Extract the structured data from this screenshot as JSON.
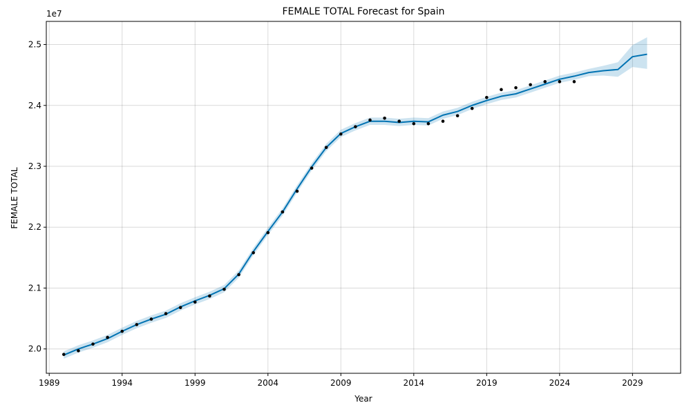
{
  "chart_data": {
    "type": "line",
    "title": "FEMALE TOTAL Forecast for Spain",
    "xlabel": "Year",
    "ylabel": "FEMALE TOTAL",
    "y_offset_label": "1e7",
    "xlim": [
      1988.8,
      2032.3
    ],
    "ylim": [
      19.6,
      25.38
    ],
    "x_ticks": [
      1989,
      1994,
      1999,
      2004,
      2009,
      2014,
      2019,
      2024,
      2029
    ],
    "y_ticks": [
      20.0,
      21.0,
      22.0,
      23.0,
      24.0,
      25.0
    ],
    "y_tick_labels": [
      "2.0",
      "2.1",
      "2.2",
      "2.3",
      "2.4",
      "2.5"
    ],
    "grid": true,
    "colors": {
      "forecast": "#0072B2",
      "interval": "#9ECAE1",
      "observed": "#000000"
    },
    "series": [
      {
        "kind": "observed",
        "x": [
          1990,
          1991,
          1992,
          1993,
          1994,
          1995,
          1996,
          1997,
          1998,
          1999,
          2000,
          2001,
          2002,
          2003,
          2004,
          2005,
          2006,
          2007,
          2008,
          2009,
          2010,
          2011,
          2012,
          2013,
          2014,
          2015,
          2016,
          2017,
          2018,
          2019,
          2020,
          2021,
          2022,
          2023,
          2024,
          2025
        ],
        "values": [
          19.91,
          19.97,
          20.08,
          20.19,
          20.29,
          20.4,
          20.49,
          20.58,
          20.68,
          20.77,
          20.87,
          20.98,
          21.22,
          21.58,
          21.91,
          22.25,
          22.59,
          22.97,
          23.31,
          23.53,
          23.65,
          23.76,
          23.79,
          23.74,
          23.7,
          23.7,
          23.74,
          23.83,
          23.95,
          24.13,
          24.26,
          24.29,
          24.34,
          24.39,
          24.39,
          24.39
        ]
      },
      {
        "kind": "forecast",
        "x": [
          1990,
          1991,
          1992,
          1993,
          1994,
          1995,
          1996,
          1997,
          1998,
          1999,
          2000,
          2001,
          2002,
          2003,
          2004,
          2005,
          2006,
          2007,
          2008,
          2009,
          2010,
          2011,
          2012,
          2013,
          2014,
          2015,
          2016,
          2017,
          2018,
          2019,
          2020,
          2021,
          2022,
          2023,
          2024,
          2025,
          2026,
          2027,
          2028,
          2029,
          2030
        ],
        "values": [
          19.9,
          20.0,
          20.08,
          20.17,
          20.29,
          20.4,
          20.49,
          20.57,
          20.69,
          20.79,
          20.88,
          20.99,
          21.23,
          21.6,
          21.93,
          22.25,
          22.63,
          22.99,
          23.31,
          23.54,
          23.65,
          23.74,
          23.74,
          23.72,
          23.74,
          23.73,
          23.84,
          23.9,
          24.0,
          24.08,
          24.15,
          24.19,
          24.27,
          24.35,
          24.43,
          24.48,
          24.54,
          24.57,
          24.59,
          24.8,
          24.84
        ],
        "lower": [
          19.84,
          19.94,
          20.02,
          20.11,
          20.23,
          20.34,
          20.43,
          20.51,
          20.63,
          20.73,
          20.82,
          20.93,
          21.17,
          21.54,
          21.87,
          22.19,
          22.57,
          22.93,
          23.25,
          23.48,
          23.59,
          23.68,
          23.68,
          23.66,
          23.68,
          23.67,
          23.78,
          23.84,
          23.94,
          24.02,
          24.09,
          24.13,
          24.21,
          24.29,
          24.37,
          24.42,
          24.48,
          24.49,
          24.47,
          24.63,
          24.6
        ],
        "upper": [
          19.96,
          20.06,
          20.14,
          20.23,
          20.35,
          20.46,
          20.55,
          20.63,
          20.75,
          20.85,
          20.94,
          21.05,
          21.29,
          21.66,
          21.99,
          22.31,
          22.69,
          23.05,
          23.37,
          23.6,
          23.71,
          23.8,
          23.8,
          23.78,
          23.8,
          23.79,
          23.9,
          23.96,
          24.06,
          24.14,
          24.21,
          24.25,
          24.33,
          24.41,
          24.49,
          24.54,
          24.6,
          24.65,
          24.71,
          24.99,
          25.12
        ]
      }
    ]
  }
}
